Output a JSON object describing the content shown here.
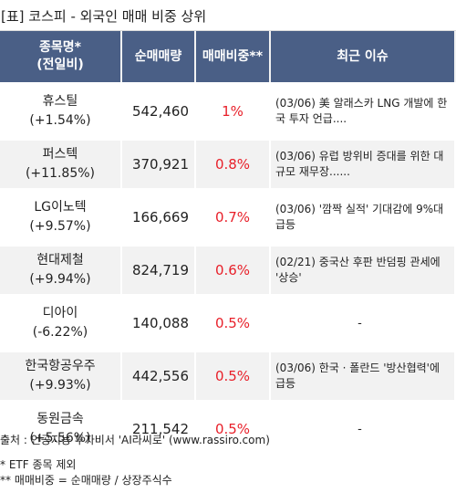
{
  "title": "[표] 코스피 - 외국인 매매 비중 상위",
  "colors": {
    "header_bg": "#4a5f86",
    "header_text": "#ffffff",
    "ratio_text": "#e8202a",
    "alt_row_bg": "#f2f2f2"
  },
  "headers": [
    "종목명*\n(전일비)",
    "순매매량",
    "매매비중**",
    "최근 이슈"
  ],
  "rows": [
    {
      "name": "휴스틸",
      "change": "(+1.54%)",
      "volume": "542,460",
      "ratio": "1%",
      "issue": "(03/06) 美 알래스카 LNG 개발에 한국 투자 언급...."
    },
    {
      "name": "퍼스텍",
      "change": "(+11.85%)",
      "volume": "370,921",
      "ratio": "0.8%",
      "issue": "(03/06) 유럽 방위비 증대를 위한 대규모 재무장......"
    },
    {
      "name": "LG이노텍",
      "change": "(+9.57%)",
      "volume": "166,669",
      "ratio": "0.7%",
      "issue": "(03/06) '깜짝 실적' 기대감에 9%대 급등"
    },
    {
      "name": "현대제철",
      "change": "(+9.94%)",
      "volume": "824,719",
      "ratio": "0.6%",
      "issue": "(02/21) 중국산 후판 반덤핑 관세에 '상승'"
    },
    {
      "name": "디아이",
      "change": "(-6.22%)",
      "volume": "140,088",
      "ratio": "0.5%",
      "issue": "-"
    },
    {
      "name": "한국항공우주",
      "change": "(+9.93%)",
      "volume": "442,556",
      "ratio": "0.5%",
      "issue": "(03/06) 한국 · 폴란드 '방산협력'에 급등"
    },
    {
      "name": "동원금속",
      "change": "(+5.56%)",
      "volume": "211,542",
      "ratio": "0.5%",
      "issue": "-"
    }
  ],
  "notes": {
    "source": "출처 : 인공지능 투자비서 'AI라씨로' (www.rassiro.com)",
    "note1": "* ETF 종목 제외",
    "note2": "** 매매비중 = 순매매량 / 상장주식수"
  }
}
